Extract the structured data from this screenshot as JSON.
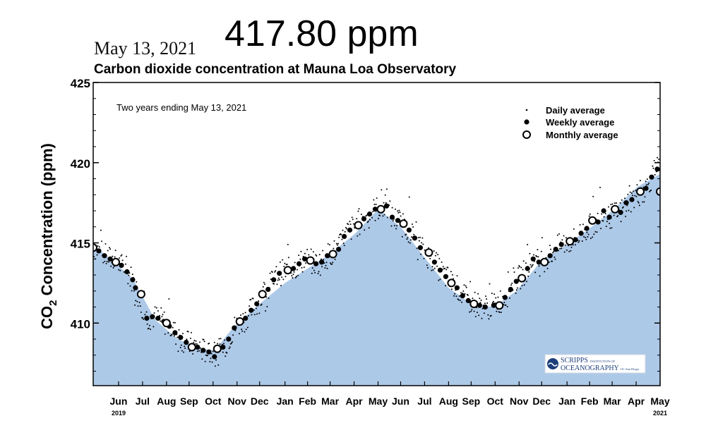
{
  "header": {
    "date": "May 13, 2021",
    "reading": "417.80 ppm",
    "title": "Carbon dioxide concentration at Mauna Loa Observatory"
  },
  "logo": {
    "line1": "SCRIPPS",
    "line1_small": "INSTITUTION OF",
    "line2": "OCEANOGRAPHY",
    "line2_small": "UC San Diego"
  },
  "colors": {
    "fill": "#adc9e8",
    "marker": "#000000",
    "background": "#ffffff"
  },
  "chart_data": {
    "type": "scatter",
    "title": "Carbon dioxide concentration at Mauna Loa Observatory",
    "annotation": "Two years ending May 13, 2021",
    "ylabel_main": "CO",
    "ylabel_sub": "2",
    "ylabel_rest": " Concentration (ppm)",
    "ylim": [
      406.1,
      425
    ],
    "yticks": [
      410,
      415,
      420,
      425
    ],
    "xlim": [
      2019.36,
      2021.37
    ],
    "xtick_labels": [
      {
        "label": "Jun",
        "x": 2019.45
      },
      {
        "label": "Jul",
        "x": 2019.535
      },
      {
        "label": "Aug",
        "x": 2019.62
      },
      {
        "label": "Sep",
        "x": 2019.7
      },
      {
        "label": "Oct",
        "x": 2019.785
      },
      {
        "label": "Nov",
        "x": 2019.87
      },
      {
        "label": "Dec",
        "x": 2019.95
      },
      {
        "label": "Jan",
        "x": 2020.04
      },
      {
        "label": "Feb",
        "x": 2020.12
      },
      {
        "label": "Mar",
        "x": 2020.2
      },
      {
        "label": "Apr",
        "x": 2020.285
      },
      {
        "label": "May",
        "x": 2020.37
      },
      {
        "label": "Jun",
        "x": 2020.45
      },
      {
        "label": "Jul",
        "x": 2020.535
      },
      {
        "label": "Aug",
        "x": 2020.62
      },
      {
        "label": "Sep",
        "x": 2020.7
      },
      {
        "label": "Oct",
        "x": 2020.785
      },
      {
        "label": "Nov",
        "x": 2020.87
      },
      {
        "label": "Dec",
        "x": 2020.95
      },
      {
        "label": "Jan",
        "x": 2021.04
      },
      {
        "label": "Feb",
        "x": 2021.12
      },
      {
        "label": "Mar",
        "x": 2021.2
      },
      {
        "label": "Apr",
        "x": 2021.285
      },
      {
        "label": "May",
        "x": 2021.37
      }
    ],
    "year_labels": [
      {
        "label": "2019",
        "x": 2019.45
      },
      {
        "label": "2021",
        "x": 2021.37
      }
    ],
    "legend": {
      "position": "top-right",
      "entries": [
        "Daily average",
        "Weekly average",
        "Monthly average"
      ]
    },
    "fill_curve": {
      "x": [
        2019.36,
        2019.42,
        2019.5,
        2019.58,
        2019.66,
        2019.74,
        2019.79,
        2019.86,
        2019.95,
        2020.04,
        2020.12,
        2020.2,
        2020.29,
        2020.37,
        2020.45,
        2020.53,
        2020.62,
        2020.7,
        2020.78,
        2020.86,
        2020.95,
        2021.04,
        2021.12,
        2021.2,
        2021.29,
        2021.37
      ],
      "y": [
        414.9,
        414.0,
        412.8,
        410.2,
        409.0,
        408.4,
        408.3,
        409.8,
        411.2,
        412.5,
        413.4,
        414.3,
        415.6,
        417.1,
        416.0,
        414.2,
        412.2,
        411.2,
        411.0,
        412.0,
        413.9,
        414.9,
        415.9,
        417.0,
        418.5,
        419.3
      ]
    },
    "monthly": {
      "x": [
        2019.36,
        2019.44,
        2019.53,
        2019.62,
        2019.71,
        2019.8,
        2019.88,
        2019.96,
        2020.05,
        2020.13,
        2020.21,
        2020.3,
        2020.38,
        2020.46,
        2020.55,
        2020.63,
        2020.71,
        2020.8,
        2020.88,
        2020.96,
        2021.05,
        2021.13,
        2021.21,
        2021.3,
        2021.37
      ],
      "y": [
        414.7,
        413.8,
        411.8,
        410.0,
        408.5,
        408.4,
        410.1,
        411.8,
        413.3,
        413.9,
        414.3,
        416.1,
        417.1,
        416.2,
        414.4,
        412.5,
        411.2,
        411.1,
        412.8,
        413.8,
        415.1,
        416.4,
        417.1,
        418.2,
        418.2
      ]
    },
    "weekly": {
      "x": [
        2019.36,
        2019.38,
        2019.4,
        2019.42,
        2019.46,
        2019.48,
        2019.5,
        2019.51,
        2019.55,
        2019.57,
        2019.59,
        2019.61,
        2019.63,
        2019.65,
        2019.67,
        2019.69,
        2019.73,
        2019.75,
        2019.77,
        2019.79,
        2019.82,
        2019.84,
        2019.86,
        2019.9,
        2019.92,
        2019.94,
        2019.98,
        2020.0,
        2020.02,
        2020.07,
        2020.09,
        2020.11,
        2020.15,
        2020.17,
        2020.19,
        2020.23,
        2020.25,
        2020.27,
        2020.32,
        2020.34,
        2020.36,
        2020.4,
        2020.42,
        2020.44,
        2020.48,
        2020.5,
        2020.52,
        2020.57,
        2020.59,
        2020.61,
        2020.65,
        2020.67,
        2020.69,
        2020.73,
        2020.75,
        2020.78,
        2020.82,
        2020.84,
        2020.86,
        2020.9,
        2020.92,
        2020.94,
        2020.98,
        2021.0,
        2021.02,
        2021.07,
        2021.09,
        2021.11,
        2021.15,
        2021.17,
        2021.19,
        2021.23,
        2021.25,
        2021.27,
        2021.32,
        2021.34,
        2021.36
      ],
      "y": [
        414.8,
        414.5,
        414.2,
        414.0,
        413.6,
        413.2,
        412.7,
        412.2,
        410.3,
        410.4,
        410.3,
        410.1,
        409.8,
        409.4,
        409.1,
        408.8,
        408.5,
        408.3,
        408.2,
        407.9,
        408.5,
        409.0,
        409.7,
        410.3,
        410.8,
        411.2,
        412.1,
        412.7,
        413.1,
        413.4,
        413.7,
        414.0,
        413.7,
        413.8,
        414.2,
        414.6,
        415.4,
        415.8,
        416.5,
        416.8,
        417.1,
        417.3,
        416.6,
        416.4,
        415.8,
        415.3,
        414.7,
        413.8,
        413.3,
        412.9,
        412.2,
        411.7,
        411.4,
        411.1,
        411.0,
        411.1,
        411.6,
        412.1,
        412.6,
        413.4,
        414.0,
        413.8,
        414.2,
        414.6,
        414.9,
        415.2,
        415.6,
        415.9,
        416.3,
        417.0,
        416.6,
        416.9,
        417.5,
        417.7,
        418.4,
        419.1,
        419.6
      ]
    }
  }
}
